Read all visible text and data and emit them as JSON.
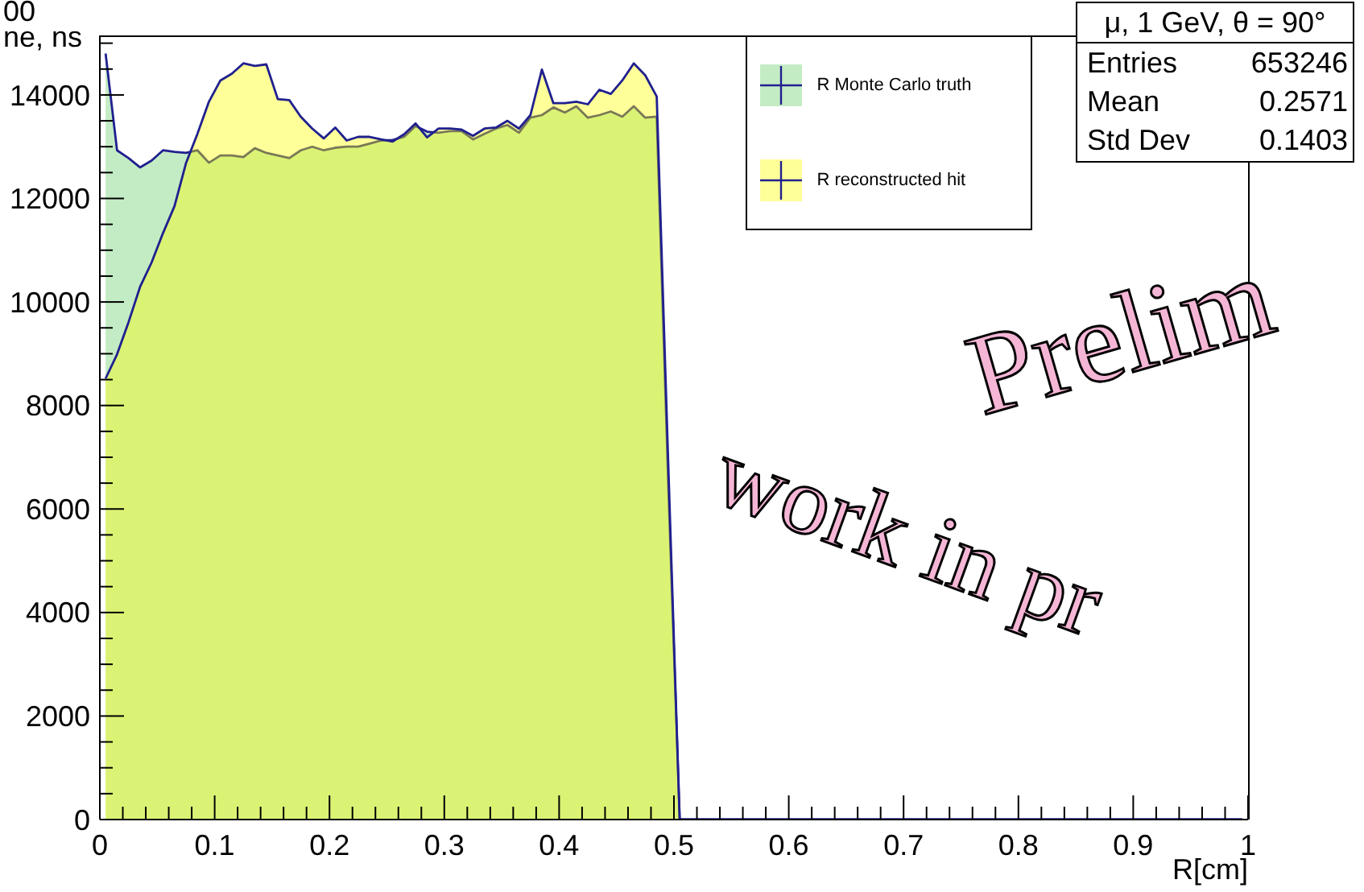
{
  "chart_data": {
    "type": "area",
    "xlabel": "R[cm]",
    "ylabel": "00\nne, ns",
    "annotations": [
      "μ, 1 GeV, θ = 90°",
      "Entries",
      "653246",
      "Mean",
      "0.2571",
      "Std Dev",
      "0.1403",
      "Prelim",
      "work in pr"
    ],
    "legend": "top",
    "x": [
      0.005,
      0.015,
      0.025,
      0.035,
      0.045,
      0.055,
      0.065,
      0.075,
      0.085,
      0.095,
      0.105,
      0.115,
      0.125,
      0.135,
      0.145,
      0.155,
      0.165,
      0.175,
      0.185,
      0.195,
      0.205,
      0.215,
      0.225,
      0.235,
      0.245,
      0.255,
      0.265,
      0.275,
      0.285,
      0.295,
      0.305,
      0.315,
      0.325,
      0.335,
      0.345,
      0.355,
      0.365,
      0.375,
      0.385,
      0.395,
      0.405,
      0.415,
      0.425,
      0.435,
      0.445,
      0.455,
      0.465,
      0.475,
      0.485,
      0.495,
      0.505,
      0.515,
      0.525,
      0.535,
      0.545,
      0.555,
      0.565,
      0.575,
      0.585,
      0.595,
      0.605,
      0.615,
      0.625,
      0.635,
      0.645,
      0.655,
      0.665,
      0.675,
      0.685,
      0.695,
      0.705,
      0.715,
      0.725,
      0.735,
      0.745,
      0.755,
      0.765,
      0.775,
      0.785,
      0.795,
      0.805,
      0.815,
      0.825,
      0.835,
      0.845,
      0.855,
      0.865,
      0.875,
      0.885,
      0.895,
      0.905,
      0.915,
      0.925,
      0.935,
      0.945,
      0.955,
      0.965,
      0.975,
      0.985,
      0.995
    ],
    "series": [
      {
        "name": "R Monte Carlo truth",
        "color": "#6bcf6b",
        "values": [
          14800,
          12930,
          12780,
          12600,
          12730,
          12930,
          12900,
          12880,
          12930,
          12690,
          12830,
          12830,
          12800,
          12970,
          12880,
          12830,
          12780,
          12930,
          13000,
          12930,
          12980,
          13000,
          13000,
          13060,
          13120,
          13130,
          13190,
          13400,
          13290,
          13270,
          13300,
          13300,
          13140,
          13250,
          13350,
          13420,
          13270,
          13560,
          13610,
          13760,
          13660,
          13780,
          13560,
          13610,
          13680,
          13580,
          13780,
          13560,
          13580,
          6500,
          0,
          0,
          0,
          0,
          0,
          0,
          0,
          0,
          0,
          0,
          0,
          0,
          0,
          0,
          0,
          0,
          0,
          0,
          0,
          0,
          0,
          0,
          0,
          0,
          0,
          0,
          0,
          0,
          0,
          0,
          0,
          0,
          0,
          0,
          0,
          0,
          0,
          0,
          0,
          0,
          0,
          0,
          0,
          0,
          0,
          0,
          0,
          0,
          0,
          0
        ]
      },
      {
        "name": "R reconstructed hit",
        "color": "#ffff00",
        "values": [
          8520,
          8990,
          9610,
          10290,
          10760,
          11330,
          11850,
          12680,
          13250,
          13870,
          14280,
          14410,
          14610,
          14560,
          14590,
          13920,
          13900,
          13580,
          13350,
          13160,
          13370,
          13120,
          13190,
          13190,
          13140,
          13100,
          13240,
          13450,
          13180,
          13350,
          13350,
          13330,
          13210,
          13350,
          13370,
          13500,
          13350,
          13610,
          14490,
          13840,
          13840,
          13870,
          13820,
          14100,
          14020,
          14280,
          14610,
          14380,
          13970,
          6900,
          0,
          0,
          0,
          0,
          0,
          0,
          0,
          0,
          0,
          0,
          0,
          0,
          0,
          0,
          0,
          0,
          0,
          0,
          0,
          0,
          0,
          0,
          0,
          0,
          0,
          0,
          0,
          0,
          0,
          0,
          0,
          0,
          0,
          0,
          0,
          0,
          0,
          0,
          0,
          0,
          0,
          0,
          0,
          0,
          0,
          0,
          0,
          0,
          0,
          0
        ]
      }
    ],
    "xlim": [
      0,
      1
    ],
    "xticks": [
      0,
      {
        "value": 0.02,
        "label": null
      },
      {
        "value": 0.04,
        "label": null
      },
      {
        "value": 0.06,
        "label": null
      },
      {
        "value": 0.08,
        "label": null
      },
      0.1,
      {
        "value": 0.12,
        "label": null
      },
      {
        "value": 0.14,
        "label": null
      },
      {
        "value": 0.16,
        "label": null
      },
      {
        "value": 0.18,
        "label": null
      },
      0.2,
      {
        "value": 0.22,
        "label": null
      },
      {
        "value": 0.24,
        "label": null
      },
      {
        "value": 0.26,
        "label": null
      },
      {
        "value": 0.28,
        "label": null
      },
      0.3,
      {
        "value": 0.32,
        "label": null
      },
      {
        "value": 0.34,
        "label": null
      },
      {
        "value": 0.36,
        "label": null
      },
      {
        "value": 0.38,
        "label": null
      },
      0.4,
      {
        "value": 0.42,
        "label": null
      },
      {
        "value": 0.44,
        "label": null
      },
      {
        "value": 0.46,
        "label": null
      },
      {
        "value": 0.48,
        "label": null
      },
      0.5,
      {
        "value": 0.52,
        "label": null
      },
      {
        "value": 0.54,
        "label": null
      },
      {
        "value": 0.56,
        "label": null
      },
      {
        "value": 0.58,
        "label": null
      },
      0.6,
      {
        "value": 0.62,
        "label": null
      },
      {
        "value": 0.64,
        "label": null
      },
      {
        "value": 0.66,
        "label": null
      },
      {
        "value": 0.68,
        "label": null
      },
      0.7,
      {
        "value": 0.72,
        "label": null
      },
      {
        "value": 0.74,
        "label": null
      },
      {
        "value": 0.76,
        "label": null
      },
      {
        "value": 0.78,
        "label": null
      },
      0.8,
      {
        "value": 0.82,
        "label": null
      },
      {
        "value": 0.84,
        "label": null
      },
      {
        "value": 0.86,
        "label": null
      },
      {
        "value": 0.88,
        "label": null
      },
      0.9,
      {
        "value": 0.92,
        "label": null
      },
      {
        "value": 0.94,
        "label": null
      },
      {
        "value": 0.96,
        "label": null
      },
      {
        "value": 0.98,
        "label": null
      },
      1
    ],
    "ylim": [
      0,
      15150
    ],
    "yticks": [
      0,
      {
        "value": 500,
        "label": null
      },
      {
        "value": 1000,
        "label": null
      },
      {
        "value": 1500,
        "label": null
      },
      2000,
      {
        "value": 2500,
        "label": null
      },
      {
        "value": 3000,
        "label": null
      },
      {
        "value": 3500,
        "label": null
      },
      4000,
      {
        "value": 4500,
        "label": null
      },
      {
        "value": 5000,
        "label": null
      },
      {
        "value": 5500,
        "label": null
      },
      6000,
      {
        "value": 6500,
        "label": null
      },
      {
        "value": 7000,
        "label": null
      },
      {
        "value": 7500,
        "label": null
      },
      8000,
      {
        "value": 8500,
        "label": null
      },
      {
        "value": 9000,
        "label": null
      },
      {
        "value": 9500,
        "label": null
      },
      10000,
      {
        "value": 10500,
        "label": null
      },
      {
        "value": 11000,
        "label": null
      },
      {
        "value": 11500,
        "label": null
      },
      12000,
      {
        "value": 12500,
        "label": null
      },
      {
        "value": 13000,
        "label": null
      },
      {
        "value": 13500,
        "label": null
      },
      14000,
      {
        "value": 14500,
        "label": null
      },
      {
        "value": 15000,
        "label": null
      }
    ]
  }
}
